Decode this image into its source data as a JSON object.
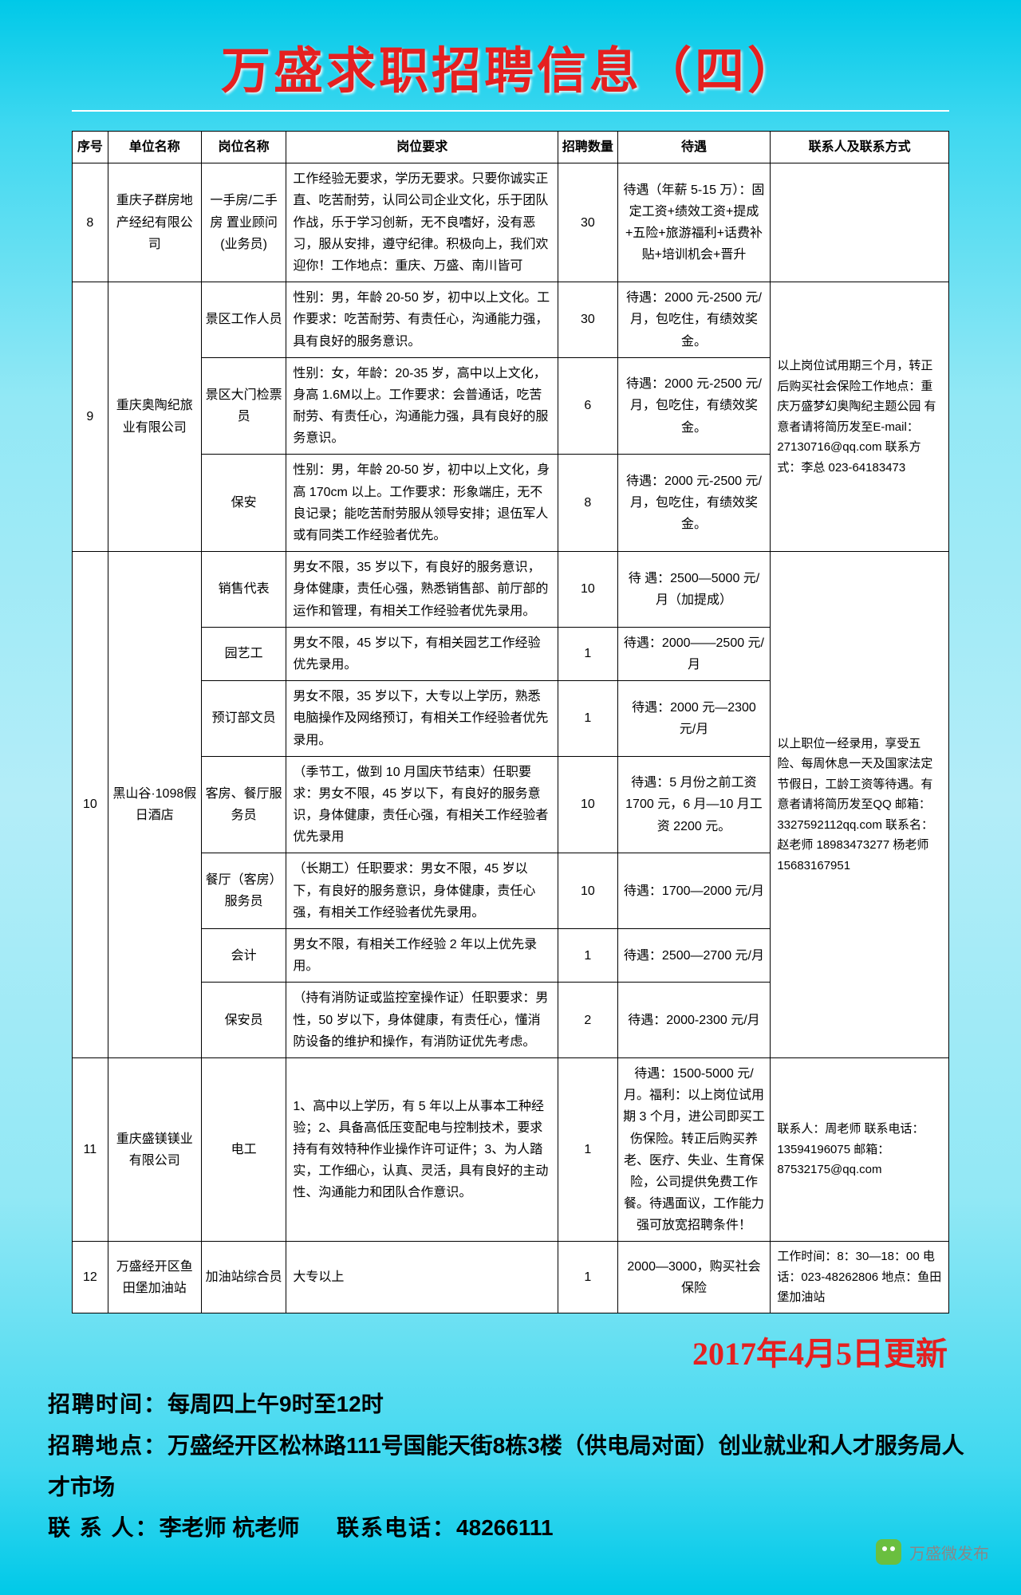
{
  "title": "万盛求职招聘信息（四）",
  "columns": [
    "序号",
    "单位名称",
    "岗位名称",
    "岗位要求",
    "招聘数量",
    "待遇",
    "联系人及联系方式"
  ],
  "rows": [
    {
      "no": "8",
      "company": "重庆子群房地产经纪有限公司",
      "positions": [
        {
          "name": "一手房/二手房 置业顾问 (业务员)",
          "req": "工作经验无要求，学历无要求。只要你诚实正直、吃苦耐劳，认同公司企业文化，乐于团队作战，乐于学习创新，无不良嗜好，没有恶习，服从安排，遵守纪律。积极向上，我们欢迎你！工作地点：重庆、万盛、南川皆可",
          "qty": "30",
          "treat": "待遇（年薪 5-15 万）：固定工资+绩效工资+提成+五险+旅游福利+话费补贴+培训机会+晋升"
        }
      ],
      "contact": ""
    },
    {
      "no": "9",
      "company": "重庆奥陶纪旅业有限公司",
      "positions": [
        {
          "name": "景区工作人员",
          "req": "性别：男，年龄 20-50 岁，初中以上文化。工作要求：吃苦耐劳、有责任心，沟通能力强，具有良好的服务意识。",
          "qty": "30",
          "treat": "待遇：2000 元-2500 元/月，包吃住，有绩效奖金。"
        },
        {
          "name": "景区大门检票员",
          "req": "性别：女，年龄：20-35 岁，高中以上文化，身高 1.6M以上。工作要求：会普通话，吃苦耐劳、有责任心，沟通能力强，具有良好的服务意识。",
          "qty": "6",
          "treat": "待遇：2000 元-2500 元/月，包吃住，有绩效奖金。"
        },
        {
          "name": "保安",
          "req": "性别：男，年龄 20-50 岁，初中以上文化，身高 170cm 以上。工作要求：形象端庄，无不良记录；能吃苦耐劳服从领导安排；退伍军人或有同类工作经验者优先。",
          "qty": "8",
          "treat": "待遇：2000 元-2500 元/月，包吃住，有绩效奖金。"
        }
      ],
      "contact": "以上岗位试用期三个月，转正后购买社会保险工作地点：重庆万盛梦幻奥陶纪主题公园 有意者请将简历发至E-mail：27130716@qq.com 联系方式：李总 023-64183473"
    },
    {
      "no": "10",
      "company": "黑山谷·1098假日酒店",
      "positions": [
        {
          "name": "销售代表",
          "req": "男女不限，35 岁以下，有良好的服务意识，身体健康，责任心强，熟悉销售部、前厅部的运作和管理，有相关工作经验者优先录用。",
          "qty": "10",
          "treat": "待  遇：2500—5000 元/月（加提成）"
        },
        {
          "name": "园艺工",
          "req": "男女不限，45 岁以下，有相关园艺工作经验优先录用。",
          "qty": "1",
          "treat": "待遇：2000——2500 元/月"
        },
        {
          "name": "预订部文员",
          "req": "男女不限，35 岁以下，大专以上学历，熟悉电脑操作及网络预订，有相关工作经验者优先录用。",
          "qty": "1",
          "treat": "待遇：2000 元—2300 元/月"
        },
        {
          "name": "客房、餐厅服务员",
          "req": "（季节工，做到 10 月国庆节结束）任职要求：男女不限，45 岁以下，有良好的服务意识，身体健康，责任心强，有相关工作经验者优先录用",
          "qty": "10",
          "treat": "待遇：5 月份之前工资 1700 元，6 月—10 月工资 2200 元。"
        },
        {
          "name": "餐厅（客房）服务员",
          "req": "（长期工）任职要求：男女不限，45 岁以下，有良好的服务意识，身体健康，责任心强，有相关工作经验者优先录用。",
          "qty": "10",
          "treat": "待遇：1700—2000 元/月"
        },
        {
          "name": "会计",
          "req": "男女不限，有相关工作经验 2 年以上优先录用。",
          "qty": "1",
          "treat": "待遇：2500—2700 元/月"
        },
        {
          "name": "保安员",
          "req": "（持有消防证或监控室操作证）任职要求：男性，50 岁以下，身体健康，有责任心，懂消防设备的维护和操作，有消防证优先考虑。",
          "qty": "2",
          "treat": "待遇：2000-2300 元/月"
        }
      ],
      "contact": "以上职位一经录用，享受五险、每周休息一天及国家法定节假日，工龄工资等待遇。有意者请将简历发至QQ 邮箱：3327592112qq.com 联系名：赵老师 18983473277  杨老师 15683167951"
    },
    {
      "no": "11",
      "company": "重庆盛镁镁业有限公司",
      "positions": [
        {
          "name": "电工",
          "req": "1、高中以上学历，有 5 年以上从事本工种经验；2、具备高低压变配电与控制技术，要求持有有效特种作业操作许可证件；3、为人踏实，工作细心，认真、灵活，具有良好的主动性、沟通能力和团队合作意识。",
          "qty": "1",
          "treat": "待遇：1500-5000 元/月。福利：以上岗位试用期 3 个月，进公司即买工伤保险。转正后购买养老、医疗、失业、生育保险，公司提供免费工作餐。待遇面议，工作能力强可放宽招聘条件！"
        }
      ],
      "contact": "联系人：周老师 联系电话：13594196075 邮箱：87532175@qq.com"
    },
    {
      "no": "12",
      "company": "万盛经开区鱼田堡加油站",
      "positions": [
        {
          "name": "加油站综合员",
          "req": "大专以上",
          "qty": "1",
          "treat": "2000—3000，购买社会保险"
        }
      ],
      "contact": "工作时间：8：30—18：00 电话：023-48262806 地点：鱼田堡加油站"
    }
  ],
  "update": "2017年4月5日更新",
  "footer": {
    "time_label": "招聘时间：",
    "time": "每周四上午9时至12时",
    "place_label": "招聘地点：",
    "place": "万盛经开区松林路111号国能天街8栋3楼（供电局对面）创业就业和人才服务局人才市场",
    "person_label": "联 系 人：",
    "person": "李老师 杭老师",
    "tel_label": "联系电话：",
    "tel": "48266111"
  },
  "watermark": "万盛微发布"
}
